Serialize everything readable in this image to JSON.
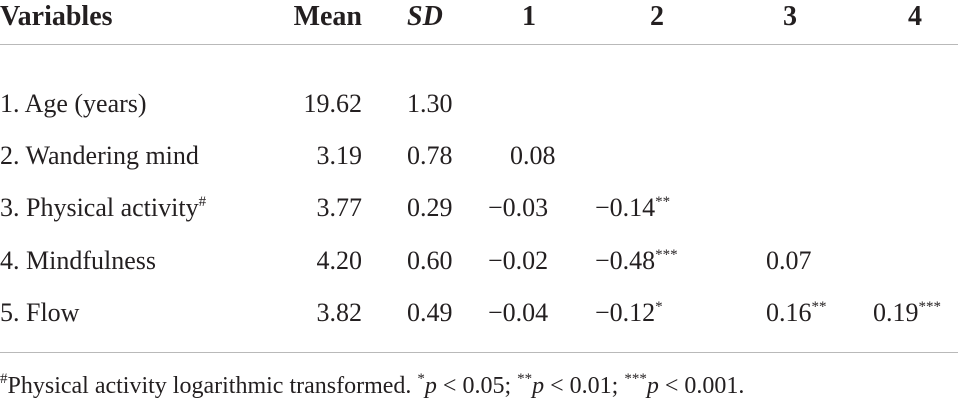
{
  "table": {
    "headers": [
      "Variables",
      "Mean",
      "SD",
      "1",
      "2",
      "3",
      "4"
    ],
    "rows": [
      {
        "variable": "1. Age (years)",
        "mark": "",
        "mean": "19.62",
        "sd": "1.30",
        "c1": "",
        "c1_sig": "",
        "c2": "",
        "c2_sig": "",
        "c3": "",
        "c3_sig": "",
        "c4": "",
        "c4_sig": ""
      },
      {
        "variable": "2. Wandering mind",
        "mark": "",
        "mean": "3.19",
        "sd": "0.78",
        "c1": "0.08",
        "c1_sig": "",
        "c2": "",
        "c2_sig": "",
        "c3": "",
        "c3_sig": "",
        "c4": "",
        "c4_sig": ""
      },
      {
        "variable": "3. Physical activity",
        "mark": "#",
        "mean": "3.77",
        "sd": "0.29",
        "c1": "−0.03",
        "c1_sig": "",
        "c2": "−0.14",
        "c2_sig": "**",
        "c3": "",
        "c3_sig": "",
        "c4": "",
        "c4_sig": ""
      },
      {
        "variable": "4. Mindfulness",
        "mark": "",
        "mean": "4.20",
        "sd": "0.60",
        "c1": "−0.02",
        "c1_sig": "",
        "c2": "−0.48",
        "c2_sig": "***",
        "c3": "0.07",
        "c3_sig": "",
        "c4": "",
        "c4_sig": ""
      },
      {
        "variable": "5. Flow",
        "mark": "",
        "mean": "3.82",
        "sd": "0.49",
        "c1": "−0.04",
        "c1_sig": "",
        "c2": "−0.12",
        "c2_sig": "*",
        "c3": "0.16",
        "c3_sig": "**",
        "c4": "0.19",
        "c4_sig": "***"
      }
    ]
  },
  "footnote": {
    "mark": "#",
    "text1": "Physical activity logarithmic transformed. ",
    "s1": "*",
    "p1": "p",
    "v1": " < 0.05; ",
    "s2": "**",
    "p2": "p",
    "v2": " < 0.01; ",
    "s3": "***",
    "p3": "p",
    "v3": " < 0.001."
  }
}
